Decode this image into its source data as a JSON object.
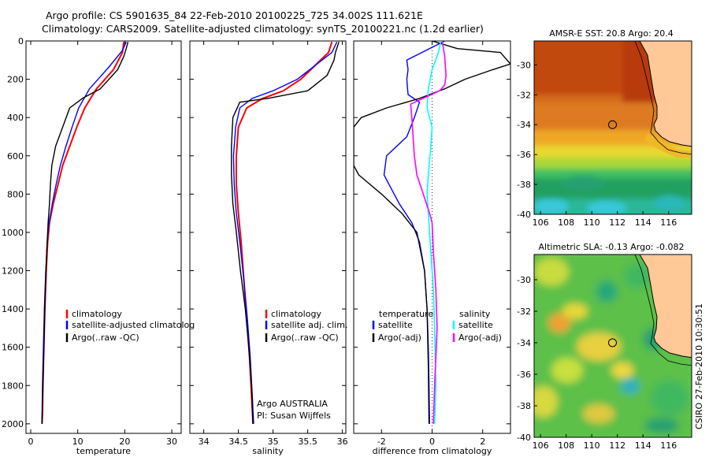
{
  "title": {
    "line1": "Argo profile: CS 5901635_84 22-Feb-2010 20100225_725 34.002S 111.621E",
    "line2": "Climatology: CARS2009. Satellite-adjusted climatology: synTS_20100221.nc (1.2d earlier)"
  },
  "side_label": "CSIRO 27-Feb-2010 10:30:51",
  "colors": {
    "clim": "#ff0000",
    "sat": "#0000ff",
    "argo": "#000000",
    "sat_diff_sal": "#00ffff",
    "argo_diff_sal": "#ff00ff",
    "land": "#ffc896"
  },
  "chart_data": [
    {
      "type": "line",
      "id": "temperature",
      "xlabel": "temperature",
      "xlim": [
        -1,
        32
      ],
      "ylim": [
        2050,
        0
      ],
      "xticks": [
        0,
        10,
        20,
        30
      ],
      "yticks": [
        0,
        200,
        400,
        600,
        800,
        1000,
        1200,
        1400,
        1600,
        1800,
        2000
      ],
      "legend": [
        "climatology",
        "satellite-adjusted climatolog",
        "Argo(..raw -QC)"
      ],
      "series": [
        {
          "name": "climatology",
          "color": "#ff0000",
          "width": 2,
          "x": [
            19.8,
            19.5,
            17.6,
            14.0,
            11.5,
            9.8,
            8.3,
            6.8,
            5.8,
            4.8,
            4.0,
            3.6,
            3.3,
            3.0,
            2.8,
            2.6,
            2.5,
            2.4
          ],
          "y": [
            5,
            60,
            150,
            250,
            350,
            450,
            550,
            650,
            750,
            850,
            950,
            1050,
            1200,
            1400,
            1600,
            1800,
            1950,
            2000
          ]
        },
        {
          "name": "satellite-adjusted climatology",
          "color": "#0000ff",
          "width": 1.4,
          "x": [
            20.3,
            19.5,
            16.5,
            12.5,
            10.2,
            8.8,
            7.5,
            6.3,
            5.4,
            4.6,
            3.9,
            3.5,
            3.2,
            2.9,
            2.7,
            2.5,
            2.4
          ],
          "y": [
            5,
            50,
            140,
            250,
            350,
            450,
            550,
            650,
            750,
            850,
            950,
            1050,
            1200,
            1400,
            1600,
            1800,
            2000
          ]
        },
        {
          "name": "Argo(..raw -QC)",
          "color": "#000000",
          "width": 1.4,
          "x": [
            20.7,
            20.3,
            19.8,
            18.5,
            14.8,
            11.0,
            8.3,
            6.8,
            5.3,
            4.5,
            4.2,
            4.0,
            3.7,
            3.4,
            3.1,
            2.9,
            2.7,
            2.5,
            2.4
          ],
          "y": [
            5,
            40,
            80,
            150,
            250,
            300,
            350,
            450,
            550,
            650,
            750,
            850,
            950,
            1100,
            1300,
            1500,
            1700,
            1900,
            2000
          ]
        }
      ]
    },
    {
      "type": "line",
      "id": "salinity",
      "xlabel": "salinity",
      "xlim": [
        33.8,
        36.05
      ],
      "ylim": [
        2050,
        0
      ],
      "xticks": [
        34,
        34.5,
        35,
        35.5,
        36
      ],
      "legend": [
        "climatology",
        "satellite adj. clim.",
        "Argo(..raw -QC)"
      ],
      "annotation": [
        "Argo AUSTRALIA",
        "PI: Susan Wijffels"
      ],
      "series": [
        {
          "name": "climatology",
          "color": "#ff0000",
          "width": 2,
          "x": [
            35.85,
            35.8,
            35.6,
            35.4,
            35.15,
            34.85,
            34.62,
            34.5,
            34.47,
            34.47,
            34.5,
            34.54,
            34.58,
            34.62,
            34.66,
            34.69,
            34.71
          ],
          "y": [
            5,
            60,
            130,
            200,
            260,
            300,
            350,
            450,
            600,
            750,
            900,
            1050,
            1250,
            1450,
            1650,
            1850,
            2000
          ]
        },
        {
          "name": "satellite adj. clim.",
          "color": "#0000ff",
          "width": 1.4,
          "x": [
            35.92,
            35.85,
            35.6,
            35.35,
            35.0,
            34.7,
            34.52,
            34.46,
            34.43,
            34.44,
            34.47,
            34.52,
            34.58,
            34.63,
            34.67,
            34.7,
            34.72
          ],
          "y": [
            5,
            60,
            130,
            200,
            260,
            300,
            350,
            450,
            600,
            750,
            900,
            1050,
            1250,
            1450,
            1650,
            1850,
            2000
          ]
        },
        {
          "name": "Argo(..raw -QC)",
          "color": "#000000",
          "width": 1.4,
          "x": [
            35.95,
            35.9,
            35.88,
            35.78,
            35.5,
            34.92,
            34.52,
            34.42,
            34.4,
            34.4,
            34.42,
            34.47,
            34.53,
            34.6,
            34.65,
            34.69,
            34.71
          ],
          "y": [
            5,
            60,
            100,
            180,
            260,
            300,
            320,
            400,
            550,
            700,
            850,
            1000,
            1200,
            1400,
            1600,
            1800,
            2000
          ]
        }
      ]
    },
    {
      "type": "line",
      "id": "difference",
      "xlabel": "difference from climatology",
      "xlim": [
        -3.1,
        3.1
      ],
      "ylim": [
        2050,
        0
      ],
      "xticks": [
        -2,
        0,
        2
      ],
      "legend": {
        "temperature_title": "temperature",
        "salinity_title": "salinity",
        "temperature_items": [
          "satellite",
          "Argo(-adj)"
        ],
        "salinity_items": [
          "satellite",
          "Argo(-adj)"
        ]
      },
      "series": [
        {
          "name": "satellite",
          "group": "temperature",
          "color": "#0000ff",
          "width": 1.4,
          "x": [
            0.5,
            -1.0,
            -0.95,
            -1.0,
            -0.95,
            -0.5,
            -0.7,
            -1.0,
            -1.8,
            -1.9,
            -1.7,
            -1.3,
            -0.8,
            -0.5,
            -0.3,
            -0.2,
            -0.15,
            -0.12,
            -0.1
          ],
          "y": [
            0,
            100,
            150,
            200,
            280,
            320,
            400,
            500,
            600,
            700,
            750,
            850,
            950,
            1050,
            1200,
            1400,
            1600,
            1800,
            2000
          ]
        },
        {
          "name": "Argo(-adj)",
          "group": "temperature",
          "color": "#000000",
          "width": 1.4,
          "x": [
            0.0,
            1.0,
            2.7,
            3.1,
            2.4,
            1.3,
            0.5,
            -0.5,
            -1.8,
            -2.8,
            -3.1,
            -3.1,
            -2.9,
            -2.0,
            -1.2,
            -0.6,
            -0.3,
            -0.2,
            -0.15,
            -0.12
          ],
          "y": [
            0,
            40,
            60,
            120,
            150,
            200,
            250,
            300,
            350,
            400,
            450,
            650,
            700,
            800,
            900,
            1000,
            1200,
            1400,
            1700,
            2000
          ]
        },
        {
          "name": "satellite",
          "group": "salinity",
          "color": "#00ffff",
          "width": 1.6,
          "x": [
            0.35,
            0.25,
            0.0,
            -0.15,
            -0.2,
            0.0,
            -0.05,
            -0.15,
            -0.2,
            -0.15,
            -0.05,
            0.05,
            0.1,
            0.15,
            0.1
          ],
          "y": [
            0,
            60,
            150,
            250,
            350,
            450,
            550,
            700,
            800,
            900,
            1100,
            1300,
            1500,
            1800,
            2000
          ]
        },
        {
          "name": "Argo(-adj)",
          "group": "salinity",
          "color": "#ff00ff",
          "width": 1.6,
          "x": [
            0.4,
            0.5,
            0.55,
            0.5,
            0.3,
            -0.85,
            -0.8,
            -0.75,
            -0.7,
            -0.6,
            -0.35,
            -0.1,
            0.0,
            0.05,
            0.15,
            0.2,
            0.1,
            0.05
          ],
          "y": [
            0,
            80,
            180,
            230,
            260,
            330,
            400,
            500,
            600,
            700,
            800,
            900,
            950,
            1100,
            1300,
            1500,
            1800,
            2000
          ]
        }
      ]
    }
  ],
  "maps": [
    {
      "title": "AMSR-E SST: 20.8 Argo: 20.4",
      "xlim": [
        105.5,
        117.8
      ],
      "ylim": [
        -40,
        -28.4
      ],
      "xticks": [
        106,
        108,
        110,
        112,
        114,
        116
      ],
      "yticks": [
        -30,
        -32,
        -34,
        -36,
        -38,
        -40
      ],
      "marker": [
        111.62,
        -34.0
      ]
    },
    {
      "title": "Altimetric SLA: -0.13 Argo: -0.082",
      "xlim": [
        105.5,
        117.8
      ],
      "ylim": [
        -40,
        -28.4
      ],
      "xticks": [
        106,
        108,
        110,
        112,
        114,
        116
      ],
      "yticks": [
        -30,
        -32,
        -34,
        -36,
        -38,
        -40
      ],
      "marker": [
        111.62,
        -34.0
      ]
    }
  ]
}
